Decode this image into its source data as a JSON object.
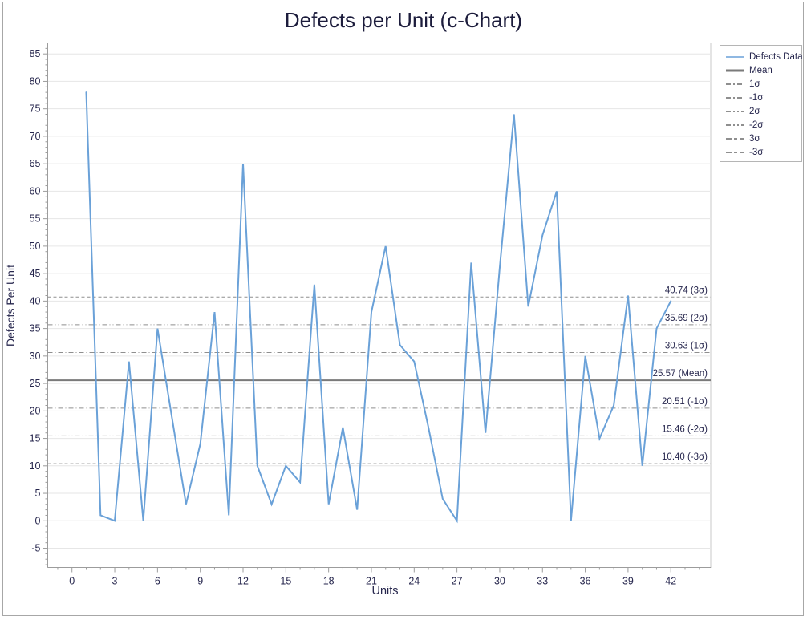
{
  "window": {
    "background": "#ffffff",
    "frame_border_color": "#a7a7a7"
  },
  "chart_data": {
    "type": "line",
    "title": "Defects per Unit (c-Chart)",
    "xlabel": "Units",
    "ylabel": "Defects Per Unit",
    "series": [
      {
        "name": "Defects Data",
        "color": "#6aa1d8",
        "x": [
          1,
          2,
          3,
          4,
          5,
          6,
          7,
          8,
          9,
          10,
          11,
          12,
          13,
          14,
          15,
          16,
          17,
          18,
          19,
          20,
          21,
          22,
          23,
          24,
          25,
          26,
          27,
          28,
          29,
          30,
          31,
          32,
          33,
          34,
          35,
          36,
          37,
          38,
          39,
          40,
          41,
          42
        ],
        "values": [
          78,
          1,
          0,
          29,
          0,
          35,
          19,
          3,
          14,
          38,
          1,
          65,
          10,
          3,
          10,
          7,
          43,
          3,
          17,
          2,
          38,
          50,
          32,
          29,
          17,
          4,
          0,
          47,
          16,
          46,
          74,
          39,
          52,
          60,
          0,
          30,
          15,
          21,
          41,
          10,
          35,
          40
        ]
      }
    ],
    "control_lines": [
      {
        "id": "sigma3",
        "label": "40.74 (3σ)",
        "value": 40.74,
        "dash": "4 3",
        "width": 1,
        "color": "#8f8f8f"
      },
      {
        "id": "sigma2",
        "label": "35.69 (2σ)",
        "value": 35.69,
        "dash": "6 3 1 3 1 3",
        "width": 1,
        "color": "#8f8f8f"
      },
      {
        "id": "sigma1",
        "label": "30.63 (1σ)",
        "value": 30.63,
        "dash": "6 3 1 3",
        "width": 1,
        "color": "#8f8f8f"
      },
      {
        "id": "mean",
        "label": "25.57 (Mean)",
        "value": 25.57,
        "dash": "",
        "width": 2,
        "color": "#7a7a7a"
      },
      {
        "id": "sigma-1",
        "label": "20.51 (-1σ)",
        "value": 20.51,
        "dash": "6 3 1 3",
        "width": 1,
        "color": "#8f8f8f"
      },
      {
        "id": "sigma-2",
        "label": "15.46 (-2σ)",
        "value": 15.46,
        "dash": "6 3 1 3 1 3",
        "width": 1,
        "color": "#8f8f8f"
      },
      {
        "id": "sigma-3",
        "label": "10.40 (-3σ)",
        "value": 10.4,
        "dash": "4 3",
        "width": 1,
        "color": "#8f8f8f"
      }
    ],
    "legend": [
      {
        "label": "Defects Data",
        "color": "#6aa1d8",
        "dash": "",
        "width": 1.5
      },
      {
        "label": "Mean",
        "color": "#7a7a7a",
        "dash": "",
        "width": 3
      },
      {
        "label": "1σ",
        "color": "#8f8f8f",
        "dash": "6 3 2 3",
        "width": 2
      },
      {
        "label": "-1σ",
        "color": "#8f8f8f",
        "dash": "6 3 2 3",
        "width": 2
      },
      {
        "label": "2σ",
        "color": "#8f8f8f",
        "dash": "6 3 2 3 2 3",
        "width": 2
      },
      {
        "label": "-2σ",
        "color": "#8f8f8f",
        "dash": "6 3 2 3 2 3",
        "width": 2
      },
      {
        "label": "3σ",
        "color": "#8f8f8f",
        "dash": "7 3 4 3",
        "width": 2
      },
      {
        "label": "-3σ",
        "color": "#8f8f8f",
        "dash": "7 3 4 3",
        "width": 2
      }
    ],
    "x_ticks": [
      0,
      3,
      6,
      9,
      12,
      15,
      18,
      21,
      24,
      27,
      30,
      33,
      36,
      39,
      42
    ],
    "y_ticks": [
      -5,
      0,
      5,
      10,
      15,
      20,
      25,
      30,
      35,
      40,
      45,
      50,
      55,
      60,
      65,
      70,
      75,
      80,
      85
    ],
    "xlim": [
      -1.7,
      44.8
    ],
    "ylim": [
      -8.5,
      87
    ],
    "grid": "horizontal",
    "legend_position": "top-right",
    "colors": {
      "gridline": "#e6e6e6",
      "plot_border": "#c9c9c9",
      "axis_line": "#9c9c9c",
      "tick": "#9c9c9c",
      "tick_label": "#26264d",
      "annotation_label": "#26264d",
      "title": "#1c1c3c"
    }
  }
}
